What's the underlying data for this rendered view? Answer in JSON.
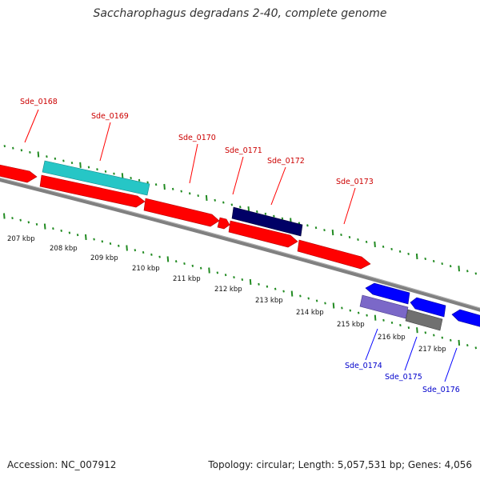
{
  "title": "Saccharophagus degradans 2-40, complete genome",
  "footer": {
    "accession": "Accession: NC_007912",
    "summary": "Topology: circular; Length: 5,057,531 bp; Genes: 4,056"
  },
  "colors": {
    "forward_gene": "#ff0000",
    "reverse_gene": "#0000ff",
    "forward_label": "#cc0000",
    "reverse_label": "#0000cc",
    "backbone": "#808080",
    "ticks": "#228b22",
    "cyan_feature": "#26c6c6",
    "navy_feature": "#000066",
    "purple_feature": "#7b68c8",
    "gray_feature": "#707070"
  },
  "axis_labels": [
    "207 kbp",
    "208 kbp",
    "209 kbp",
    "210 kbp",
    "211 kbp",
    "212 kbp",
    "213 kbp",
    "214 kbp",
    "215 kbp",
    "216 kbp",
    "217 kbp"
  ],
  "genes": [
    {
      "name": "Sde_0168",
      "strand": "forward"
    },
    {
      "name": "Sde_0169",
      "strand": "forward"
    },
    {
      "name": "Sde_0170",
      "strand": "forward"
    },
    {
      "name": "Sde_0171",
      "strand": "forward"
    },
    {
      "name": "Sde_0172",
      "strand": "forward"
    },
    {
      "name": "Sde_0173",
      "strand": "forward"
    },
    {
      "name": "Sde_0174",
      "strand": "reverse"
    },
    {
      "name": "Sde_0175",
      "strand": "reverse"
    },
    {
      "name": "Sde_0176",
      "strand": "reverse"
    }
  ]
}
